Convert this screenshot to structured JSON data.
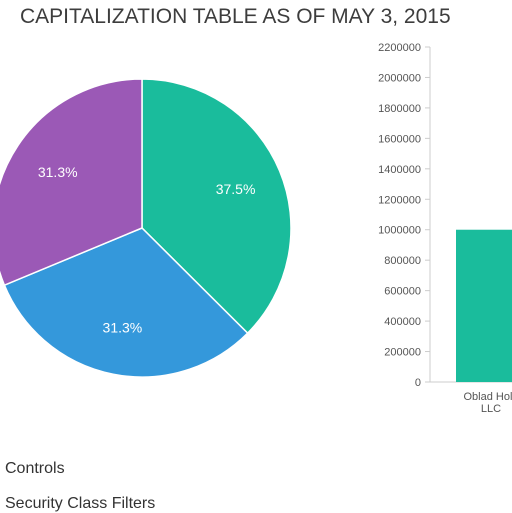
{
  "title": "CAPITALIZATION TABLE AS OF MAY 3, 2015",
  "sections": {
    "controls": "Controls",
    "security_class_filters": "Security Class Filters"
  },
  "chart_data": [
    {
      "type": "pie",
      "slices": [
        {
          "label": "37.5%",
          "value": 37.5,
          "color": "#1abc9c"
        },
        {
          "label": "31.3%",
          "value": 31.3,
          "color": "#3498db"
        },
        {
          "label": "31.3%",
          "value": 31.3,
          "color": "#9b59b6"
        }
      ]
    },
    {
      "type": "bar",
      "categories": [
        [
          "Oblad Hold",
          "LLC"
        ]
      ],
      "values": [
        1000000
      ],
      "color": "#1abc9c",
      "ylim": [
        0,
        2200000
      ],
      "yticks": [
        "0",
        "200000",
        "400000",
        "600000",
        "800000",
        "1000000",
        "1200000",
        "1400000",
        "1600000",
        "1800000",
        "2000000",
        "2200000"
      ]
    }
  ]
}
